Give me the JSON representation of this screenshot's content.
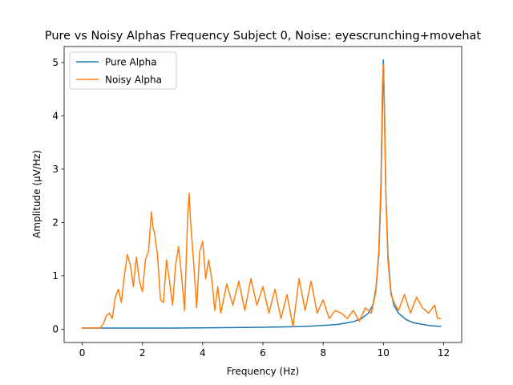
{
  "chart_data": {
    "type": "line",
    "title": "Pure vs Noisy Alphas Frequency Subject 0, Noise: eyescrunching+movehat",
    "xlabel": "Frequency (Hz)",
    "ylabel": "Amplitude (μV/Hz)",
    "xlim": [
      -0.6,
      12.6
    ],
    "ylim": [
      -0.25,
      5.3
    ],
    "xticks": [
      0,
      2,
      4,
      6,
      8,
      10,
      12
    ],
    "yticks": [
      0,
      1,
      2,
      3,
      4,
      5
    ],
    "grid": false,
    "legend_position": "top-left",
    "series": [
      {
        "name": "Pure Alpha",
        "color": "#1f77b4",
        "x": [
          0,
          1,
          2,
          3,
          4,
          5,
          6,
          7,
          7.5,
          8,
          8.5,
          9,
          9.25,
          9.5,
          9.65,
          9.75,
          9.85,
          9.92,
          9.97,
          10,
          10.03,
          10.08,
          10.15,
          10.25,
          10.35,
          10.5,
          10.75,
          11,
          11.5,
          11.9
        ],
        "y": [
          0.02,
          0.02,
          0.02,
          0.02,
          0.025,
          0.03,
          0.035,
          0.045,
          0.055,
          0.07,
          0.09,
          0.14,
          0.19,
          0.3,
          0.45,
          0.75,
          1.4,
          2.6,
          4.2,
          5.05,
          4.2,
          2.6,
          1.4,
          0.7,
          0.45,
          0.3,
          0.18,
          0.12,
          0.07,
          0.05
        ]
      },
      {
        "name": "Noisy Alpha",
        "color": "#ff7f0e",
        "x": [
          0,
          0.5,
          0.6,
          0.7,
          0.8,
          0.9,
          1.0,
          1.1,
          1.2,
          1.3,
          1.4,
          1.5,
          1.6,
          1.7,
          1.75,
          1.8,
          1.9,
          2.0,
          2.1,
          2.2,
          2.3,
          2.35,
          2.4,
          2.5,
          2.6,
          2.7,
          2.8,
          2.9,
          3.0,
          3.1,
          3.2,
          3.3,
          3.4,
          3.5,
          3.55,
          3.6,
          3.7,
          3.8,
          3.9,
          4.0,
          4.1,
          4.2,
          4.3,
          4.4,
          4.5,
          4.6,
          4.8,
          5.0,
          5.2,
          5.4,
          5.6,
          5.8,
          6.0,
          6.2,
          6.4,
          6.6,
          6.8,
          7.0,
          7.2,
          7.4,
          7.6,
          7.8,
          8.0,
          8.2,
          8.4,
          8.6,
          8.8,
          9.0,
          9.2,
          9.4,
          9.6,
          9.75,
          9.85,
          9.92,
          9.97,
          10.0,
          10.03,
          10.08,
          10.15,
          10.25,
          10.35,
          10.5,
          10.7,
          10.9,
          11.1,
          11.3,
          11.5,
          11.7,
          11.8,
          11.9
        ],
        "y": [
          0.02,
          0.02,
          0.02,
          0.1,
          0.25,
          0.3,
          0.2,
          0.6,
          0.75,
          0.5,
          1.0,
          1.4,
          1.2,
          0.8,
          1.1,
          1.35,
          0.9,
          0.7,
          1.3,
          1.45,
          2.2,
          1.9,
          1.8,
          1.4,
          0.55,
          0.5,
          1.3,
          0.9,
          0.45,
          1.2,
          1.55,
          1.0,
          0.35,
          2.1,
          2.55,
          2.0,
          1.25,
          0.4,
          1.45,
          1.65,
          0.95,
          1.3,
          0.95,
          0.35,
          0.8,
          0.3,
          0.85,
          0.45,
          0.9,
          0.35,
          0.95,
          0.45,
          0.8,
          0.3,
          0.75,
          0.2,
          0.65,
          0.05,
          0.95,
          0.35,
          0.9,
          0.3,
          0.55,
          0.2,
          0.35,
          0.3,
          0.2,
          0.35,
          0.15,
          0.4,
          0.3,
          0.7,
          1.5,
          2.8,
          4.6,
          4.95,
          4.4,
          2.6,
          1.3,
          0.65,
          0.5,
          0.35,
          0.65,
          0.3,
          0.6,
          0.4,
          0.3,
          0.45,
          0.2,
          0.2
        ]
      }
    ]
  }
}
